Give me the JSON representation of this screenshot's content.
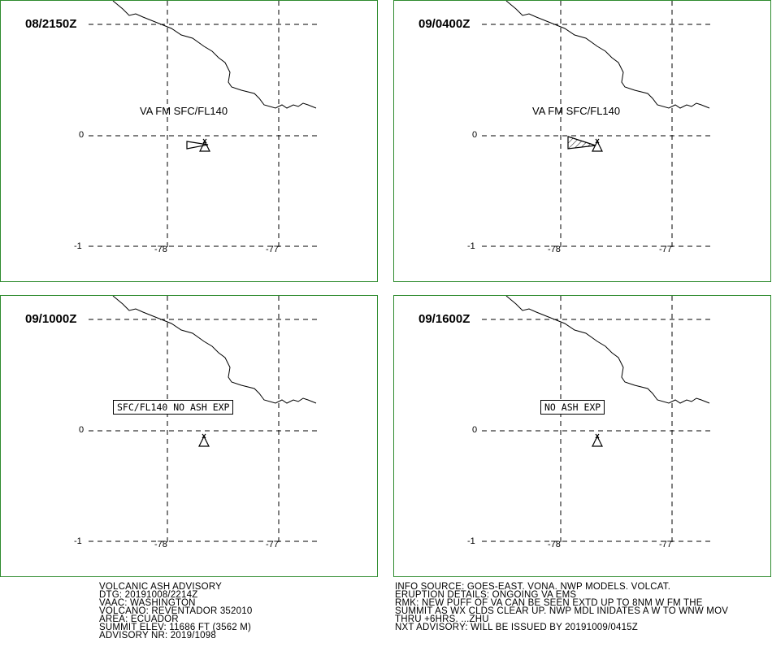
{
  "panels": [
    {
      "time": "08/2150Z",
      "va_label": "VA FM SFC/FL140",
      "box_label": "",
      "lat_labels": [
        "0",
        "-1"
      ],
      "lon_labels": [
        "-78",
        "-77"
      ]
    },
    {
      "time": "09/0400Z",
      "va_label": "VA FM SFC/FL140",
      "box_label": "",
      "lat_labels": [
        "0",
        "-1"
      ],
      "lon_labels": [
        "-78",
        "-77"
      ]
    },
    {
      "time": "09/1000Z",
      "va_label": "",
      "box_label": "SFC/FL140 NO ASH EXP",
      "lat_labels": [
        "0",
        "-1"
      ],
      "lon_labels": [
        "-78",
        "-77"
      ]
    },
    {
      "time": "09/1600Z",
      "va_label": "",
      "box_label": "NO ASH EXP",
      "lat_labels": [
        "0",
        "-1"
      ],
      "lon_labels": [
        "-78",
        "-77"
      ]
    }
  ],
  "advisory_left": [
    "VOLCANIC ASH ADVISORY",
    "DTG: 20191008/2214Z",
    "VAAC: WASHINGTON",
    "VOLCANO: REVENTADOR 352010",
    "AREA: ECUADOR",
    "SUMMIT ELEV: 11686 FT (3562 M)",
    "ADVISORY NR: 2019/1098"
  ],
  "advisory_right": [
    "INFO SOURCE: GOES-EAST. VONA. NWP MODELS. VOLCAT.",
    "ERUPTION DETAILS: ONGOING VA EMS",
    "RMK: NEW PUFF OF VA CAN BE SEEN EXTD UP TO 8NM W FM THE",
    "SUMMIT AS WX CLDS CLEAR UP. NWP MDL INIDATES A W TO WNW MOV",
    "THRU +6HRS. ...ZHU",
    "NXT ADVISORY: WILL BE ISSUED BY 20191009/0415Z"
  ],
  "colors": {
    "panel_border": "#2e8b2e",
    "lines": "#000000"
  }
}
